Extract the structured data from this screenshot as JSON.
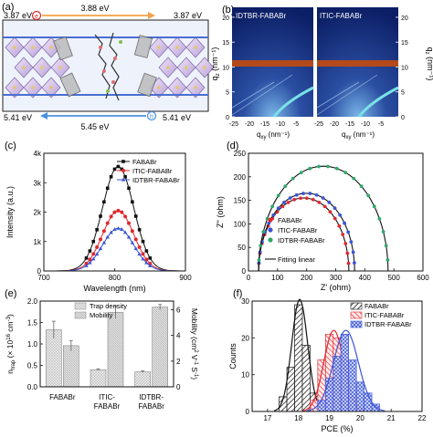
{
  "panels": {
    "a": {
      "tag": "(a)",
      "e_top_left": "3.87 eV",
      "e_top_mid": "3.88 eV",
      "e_top_right": "3.87 eV",
      "e_bot_left": "5.41 eV",
      "e_bot_mid": "5.45 eV",
      "e_bot_right": "5.41 eV",
      "electron_symbol": "e",
      "hole_symbol": "h"
    },
    "b": {
      "tag": "(b)",
      "left_title": "IDTBR-FABABr",
      "right_title": "ITIC-FABABr",
      "ylabel_left": "q",
      "ylabel_left_sub": "z",
      "ylabel_left_unit": "(nm⁻¹)",
      "ylabel_right": "q",
      "ylabel_right_sub": "z",
      "ylabel_right_unit": "(nm⁻¹)",
      "xlabel_left": "q",
      "xlabel_left_sub": "xy",
      "xlabel_left_unit": "(nm⁻¹)",
      "xlabel_right": "q",
      "xlabel_right_sub": "xy",
      "xlabel_right_unit": "(nm⁻¹)"
    },
    "c": {
      "tag": "(c)"
    },
    "d": {
      "tag": "(d)"
    },
    "e": {
      "tag": "(e)"
    },
    "f": {
      "tag": "(f)"
    }
  },
  "chart_data": [
    {
      "id": "c",
      "type": "line",
      "xlabel": "Wavelength (nm)",
      "ylabel": "Intensity (a.u.)",
      "xlim": [
        700,
        900
      ],
      "ylim": [
        0,
        4000
      ],
      "xticks": [
        700,
        800,
        900
      ],
      "yticks": [
        0,
        1000,
        2000,
        3000,
        4000
      ],
      "ytick_labels": [
        "0",
        "1k",
        "2k",
        "3k",
        "4k"
      ],
      "legend_position": "top-right",
      "peak_x": 805,
      "series": [
        {
          "name": "FABABr",
          "peak": 3550,
          "color": "#111111",
          "marker": "square"
        },
        {
          "name": "ITIC-FABABr",
          "peak": 2050,
          "color": "#e0282e",
          "marker": "circle"
        },
        {
          "name": "IDTBR-FABABr",
          "peak": 1450,
          "color": "#3b55d6",
          "marker": "triangle"
        }
      ]
    },
    {
      "id": "d",
      "type": "scatter",
      "xlabel": "Z' (ohm)",
      "ylabel": "Z\" (ohm)",
      "xlim": [
        0,
        600
      ],
      "ylim": [
        0,
        250
      ],
      "xticks": [
        0,
        100,
        200,
        300,
        400,
        500,
        600
      ],
      "yticks": [
        0,
        50,
        100,
        150,
        200,
        250
      ],
      "legend_position": "bottom-left",
      "fit_label": "Fitting linear",
      "series": [
        {
          "name": "FABABr",
          "x_start": 35,
          "x_end": 345,
          "color": "#e0282e"
        },
        {
          "name": "ITIC-FABABr",
          "x_start": 35,
          "x_end": 365,
          "color": "#3b55d6"
        },
        {
          "name": "IDTBR-FABABr",
          "x_start": 35,
          "x_end": 480,
          "color": "#2fa86a"
        }
      ]
    },
    {
      "id": "e",
      "type": "bar",
      "categories": [
        [
          "FABABr"
        ],
        [
          "ITIC-",
          "FABABr"
        ],
        [
          "IDTBR-",
          "FABABr"
        ]
      ],
      "ylabel_left": "n",
      "ylabel_left_sub": "trap",
      "ylabel_left_unit": "(× 10",
      "ylabel_left_exp": "16",
      "ylabel_left_unit2": " cm",
      "ylabel_left_exp2": "-3",
      "ylabel_left_close": ")",
      "ylabel_right": "Mobility (cm",
      "ylabel_right_exp1": "2",
      "ylabel_right_mid": " V",
      "ylabel_right_exp2": "-1",
      "ylabel_right_mid2": " S",
      "ylabel_right_exp3": "-1",
      "ylabel_right_close": ")",
      "ylim_left": [
        0,
        2.0
      ],
      "ylim_right": [
        0,
        6.67
      ],
      "yticks_left": [
        0.0,
        0.5,
        1.0,
        1.5,
        2.0
      ],
      "yticks_left_labels": [
        "0.0",
        "0.5",
        "1.0",
        "1.5",
        "2.0"
      ],
      "yticks_right": [
        0,
        2,
        4,
        6
      ],
      "legend_position": "top-center",
      "series": [
        {
          "name": "Trap density",
          "axis": "left",
          "values": [
            1.33,
            0.4,
            0.35
          ],
          "errors": [
            0.2,
            0.02,
            0.02
          ]
        },
        {
          "name": "Mobility",
          "axis": "right",
          "values": [
            3.2,
            5.8,
            6.2
          ],
          "errors": [
            0.4,
            0.5,
            0.2
          ]
        }
      ]
    },
    {
      "id": "f",
      "type": "bar",
      "xlabel": "PCE (%)",
      "ylabel": "Counts",
      "xlim": [
        16.5,
        22
      ],
      "ylim": [
        0,
        30
      ],
      "xticks": [
        17,
        18,
        19,
        20,
        21,
        22
      ],
      "yticks": [
        0,
        10,
        20,
        30
      ],
      "legend_position": "top-right",
      "bin_width": 0.25,
      "series": [
        {
          "name": "FABABr",
          "color": "#111111",
          "bins": [
            17.5,
            17.75,
            18.0,
            18.25,
            18.5,
            18.75
          ],
          "counts": [
            4,
            12,
            29,
            18,
            5,
            1
          ]
        },
        {
          "name": "ITIC-FABABr",
          "color": "#e0282e",
          "bins": [
            18.5,
            18.75,
            19.0,
            19.25,
            19.5,
            19.75,
            20.0
          ],
          "counts": [
            3,
            14,
            21,
            20,
            14,
            4,
            1
          ]
        },
        {
          "name": "IDTBR-FABABr",
          "color": "#3b55d6",
          "bins": [
            18.75,
            19.0,
            19.25,
            19.5,
            19.75,
            20.0,
            20.25,
            20.5
          ],
          "counts": [
            3,
            9,
            15,
            21,
            14,
            8,
            5,
            2
          ]
        }
      ]
    }
  ]
}
